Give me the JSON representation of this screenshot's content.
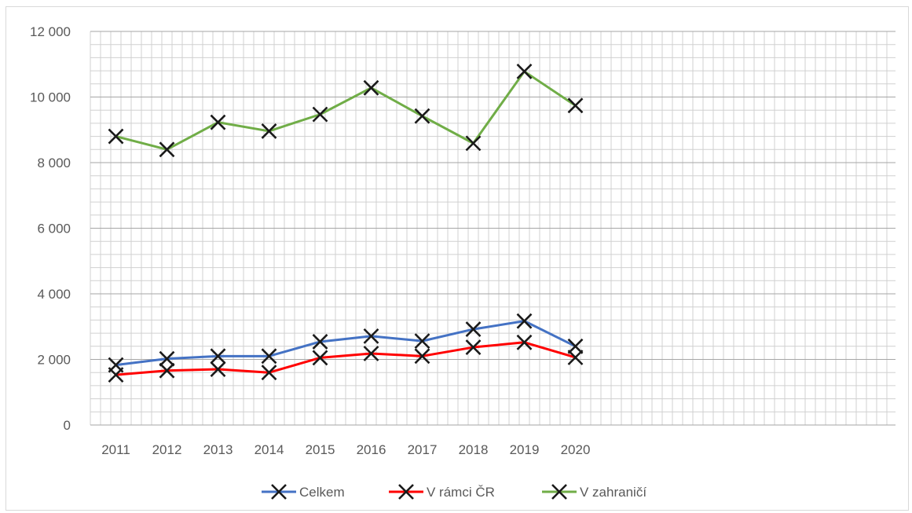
{
  "chart_data": {
    "type": "line",
    "title": "",
    "xlabel": "",
    "ylabel": "",
    "categories": [
      "2011",
      "2012",
      "2013",
      "2014",
      "2015",
      "2016",
      "2017",
      "2018",
      "2019",
      "2020"
    ],
    "ylim": [
      0,
      12000
    ],
    "yticks": [
      0,
      2000,
      4000,
      6000,
      8000,
      10000,
      12000
    ],
    "ytick_labels": [
      "0",
      "2 000",
      "4 000",
      "6 000",
      "8 000",
      "10 000",
      "12 000"
    ],
    "grid": true,
    "legend_position": "bottom",
    "marker": "x",
    "series": [
      {
        "name": "Celkem",
        "color": "#4472c4",
        "values": [
          1830,
          2020,
          2100,
          2100,
          2540,
          2710,
          2560,
          2920,
          3170,
          2400
        ]
      },
      {
        "name": "V rámci ČR",
        "color": "#ff0000",
        "values": [
          1530,
          1660,
          1700,
          1600,
          2050,
          2180,
          2100,
          2370,
          2520,
          2060
        ]
      },
      {
        "name": "V zahraničí",
        "color": "#70ad47",
        "values": [
          8800,
          8400,
          9230,
          8960,
          9470,
          10280,
          9420,
          8590,
          10780,
          9740
        ]
      }
    ]
  }
}
